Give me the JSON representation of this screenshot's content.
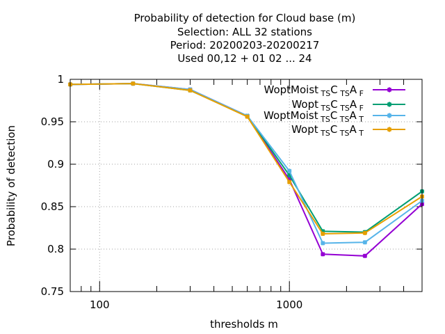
{
  "chart_data": {
    "type": "line",
    "title_lines": [
      "Probability of detection  for Cloud base (m)",
      "Selection: ALL     32 stations",
      "Period: 20200203-20200217",
      "Used  00,12  + 01 02 ... 24"
    ],
    "xlabel": "thresholds m",
    "ylabel": "Probability of detection",
    "xscale": "log",
    "xlim": [
      70,
      5000
    ],
    "ylim": [
      0.75,
      1.0
    ],
    "xticks": [
      {
        "value": 100,
        "label": "100"
      },
      {
        "value": 1000,
        "label": "1000"
      }
    ],
    "yticks": [
      {
        "value": 0.75,
        "label": "0.75"
      },
      {
        "value": 0.8,
        "label": "0.8"
      },
      {
        "value": 0.85,
        "label": "0.85"
      },
      {
        "value": 0.9,
        "label": "0.9"
      },
      {
        "value": 0.95,
        "label": "0.95"
      },
      {
        "value": 1.0,
        "label": "1"
      }
    ],
    "x": [
      70,
      150,
      300,
      600,
      1000,
      1500,
      2500,
      5000
    ],
    "grid": true,
    "legend_position": "top-right",
    "series": [
      {
        "name_main": "WoptMoist",
        "name_parts": [
          "TS",
          "C",
          "TS",
          "A",
          "F"
        ],
        "color": "#9400d3",
        "values": [
          0.994,
          0.995,
          0.988,
          0.957,
          0.882,
          0.794,
          0.792,
          0.853
        ]
      },
      {
        "name_main": "Wopt",
        "name_parts": [
          "TS",
          "C",
          "TS",
          "A",
          "F"
        ],
        "color": "#009e73",
        "values": [
          0.994,
          0.995,
          0.987,
          0.957,
          0.887,
          0.821,
          0.82,
          0.868
        ]
      },
      {
        "name_main": "WoptMoist",
        "name_parts": [
          "TS",
          "C",
          "TS",
          "A",
          "T"
        ],
        "color": "#56b4e9",
        "values": [
          0.994,
          0.995,
          0.988,
          0.957,
          0.892,
          0.807,
          0.808,
          0.857
        ]
      },
      {
        "name_main": "Wopt",
        "name_parts": [
          "TS",
          "C",
          "TS",
          "A",
          "T"
        ],
        "color": "#e69f00",
        "values": [
          0.994,
          0.995,
          0.987,
          0.956,
          0.879,
          0.818,
          0.819,
          0.862
        ]
      }
    ]
  }
}
